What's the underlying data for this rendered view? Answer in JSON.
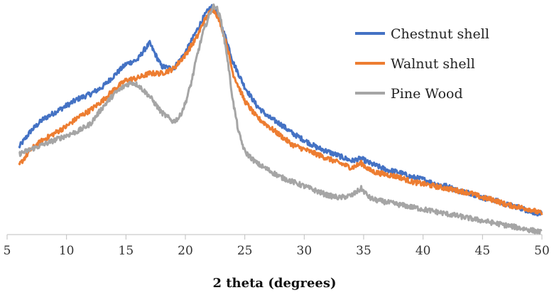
{
  "chart_data": {
    "type": "line",
    "title": "",
    "xlabel": "2 theta (degrees)",
    "ylabel": "",
    "xlim": [
      5,
      50
    ],
    "ylim": [
      0,
      100
    ],
    "xticks": [
      5,
      10,
      15,
      20,
      25,
      30,
      35,
      40,
      45,
      50
    ],
    "xtick_labels": [
      "5",
      "10",
      "15",
      "20",
      "25",
      "30",
      "35",
      "40",
      "45",
      "50"
    ],
    "grid": false,
    "legend_position": "top-right",
    "series": [
      {
        "name": "Chestnut shell",
        "color": "#4472C4",
        "x": [
          6,
          7,
          8,
          9,
          10,
          11,
          12,
          13,
          14,
          15,
          16,
          16.5,
          17,
          17.5,
          18,
          19,
          20,
          21,
          21.5,
          22,
          22.3,
          22.6,
          23,
          23.5,
          24,
          25,
          26,
          27,
          28,
          29,
          30,
          31,
          32,
          33,
          34,
          34.8,
          35.5,
          36,
          37,
          38,
          39,
          40,
          41,
          42,
          43,
          44,
          45,
          46,
          47,
          48,
          49,
          50
        ],
        "values": [
          38,
          45,
          50,
          53,
          56,
          59,
          61,
          64,
          69,
          74,
          76,
          80,
          83,
          78,
          73,
          72,
          79,
          89,
          94,
          98,
          99,
          97,
          91,
          84,
          75,
          64,
          56,
          51,
          48,
          44,
          41,
          38,
          36,
          34,
          32,
          33,
          31,
          30,
          28,
          27,
          25,
          24,
          22,
          21,
          19,
          18,
          16,
          15,
          13,
          12,
          10,
          9
        ]
      },
      {
        "name": "Walnut shell",
        "color": "#ED7D31",
        "x": [
          6,
          7,
          8,
          9,
          10,
          11,
          12,
          13,
          14,
          15,
          16,
          17,
          18,
          19,
          20,
          21,
          21.5,
          22,
          22.3,
          22.6,
          23,
          23.5,
          24,
          25,
          26,
          27,
          28,
          29,
          30,
          31,
          32,
          33,
          34,
          34.8,
          35.5,
          36,
          37,
          38,
          39,
          40,
          41,
          42,
          43,
          44,
          45,
          46,
          47,
          48,
          49,
          50
        ],
        "values": [
          30,
          37,
          41,
          44,
          47,
          51,
          54,
          58,
          63,
          67,
          68,
          70,
          70,
          72,
          78,
          86,
          92,
          96,
          98,
          96,
          91,
          82,
          70,
          58,
          51,
          47,
          43,
          39,
          37,
          35,
          33,
          31,
          29,
          31,
          28,
          27,
          26,
          25,
          23,
          22,
          21,
          20,
          19,
          18,
          16,
          15,
          13,
          12,
          11,
          9
        ]
      },
      {
        "name": "Pine Wood",
        "color": "#A5A5A5",
        "x": [
          6,
          7,
          8,
          9,
          10,
          11,
          12,
          13,
          14,
          15,
          15.5,
          16,
          17,
          18,
          19,
          19.5,
          20,
          20.5,
          21,
          21.5,
          22,
          22.3,
          22.6,
          23,
          23.5,
          24,
          24.5,
          25,
          26,
          27,
          28,
          29,
          30,
          31,
          32,
          33,
          34,
          34.8,
          35.5,
          36,
          37,
          38,
          39,
          40,
          41,
          42,
          43,
          44,
          45,
          46,
          47,
          48,
          49,
          50
        ],
        "values": [
          35,
          37,
          39,
          41,
          43,
          45,
          48,
          55,
          61,
          65,
          66,
          65,
          60,
          53,
          49,
          51,
          57,
          66,
          78,
          88,
          95,
          99,
          99,
          93,
          78,
          58,
          44,
          36,
          31,
          28,
          25,
          23,
          21,
          19,
          17,
          16,
          17,
          20,
          16,
          15,
          14,
          13,
          12,
          11,
          10,
          9,
          8,
          7,
          6,
          5,
          4,
          3,
          2,
          1
        ]
      }
    ]
  }
}
